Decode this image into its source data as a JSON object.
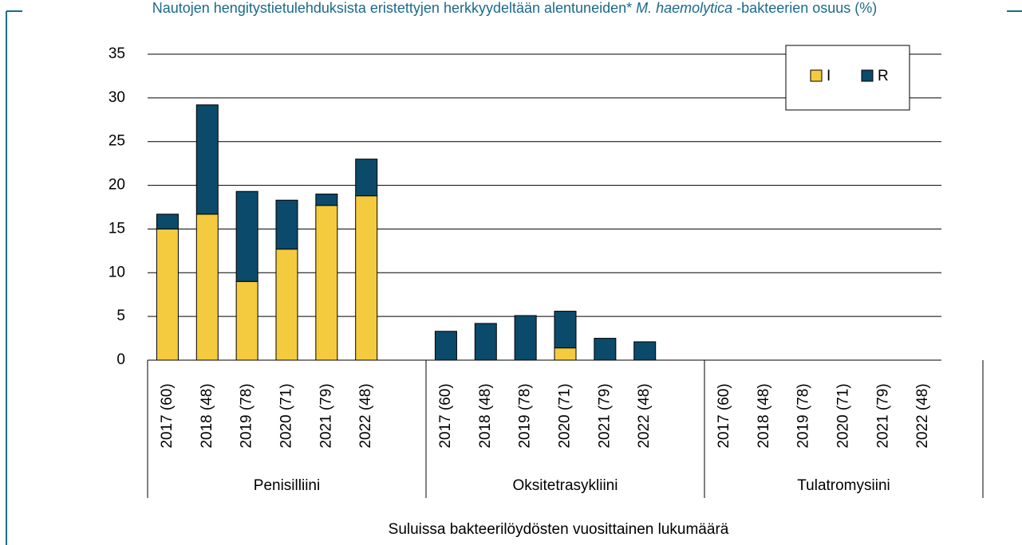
{
  "chart_data": {
    "type": "stacked_bar",
    "title": [
      "Nautojen hengitystietulehduksista eristettyjen herkkyydeltään alentuneiden* ",
      "M. haemolytica",
      " -bakteerien osuus (%)"
    ],
    "x_label": "Suluissa bakteerilöydösten vuosittainen lukumäärä",
    "groups": [
      "Penisilliini",
      "Oksitetrasykliini",
      "Tulatromysiini"
    ],
    "categories": [
      "2017 (60)",
      "2018 (48)",
      "2019 (78)",
      "2020 (71)",
      "2021 (79)",
      "2022 (48)",
      "2017 (60)",
      "2018 (48)",
      "2019 (78)",
      "2020 (71)",
      "2021 (79)",
      "2022 (48)",
      "2017 (60)",
      "2018 (48)",
      "2019 (78)",
      "2020 (71)",
      "2021 (79)",
      "2022 (48)"
    ],
    "series": [
      {
        "name": "I",
        "color": "#f4cb3f",
        "values": [
          15,
          16.7,
          9,
          12.7,
          17.7,
          18.8,
          0,
          0,
          0,
          1.4,
          0,
          0,
          0,
          0,
          0,
          0,
          0,
          0
        ]
      },
      {
        "name": "R",
        "color": "#0b4a6a",
        "values": [
          1.7,
          12.5,
          10.3,
          5.6,
          1.3,
          4.2,
          3.3,
          4.2,
          5.1,
          4.2,
          2.5,
          2.1,
          0,
          0,
          0,
          0,
          0,
          0
        ]
      }
    ],
    "ylim": [
      0,
      35
    ],
    "yticks": [
      0,
      5,
      10,
      15,
      20,
      25,
      30,
      35
    ],
    "grid": true,
    "legend": "top-right"
  }
}
